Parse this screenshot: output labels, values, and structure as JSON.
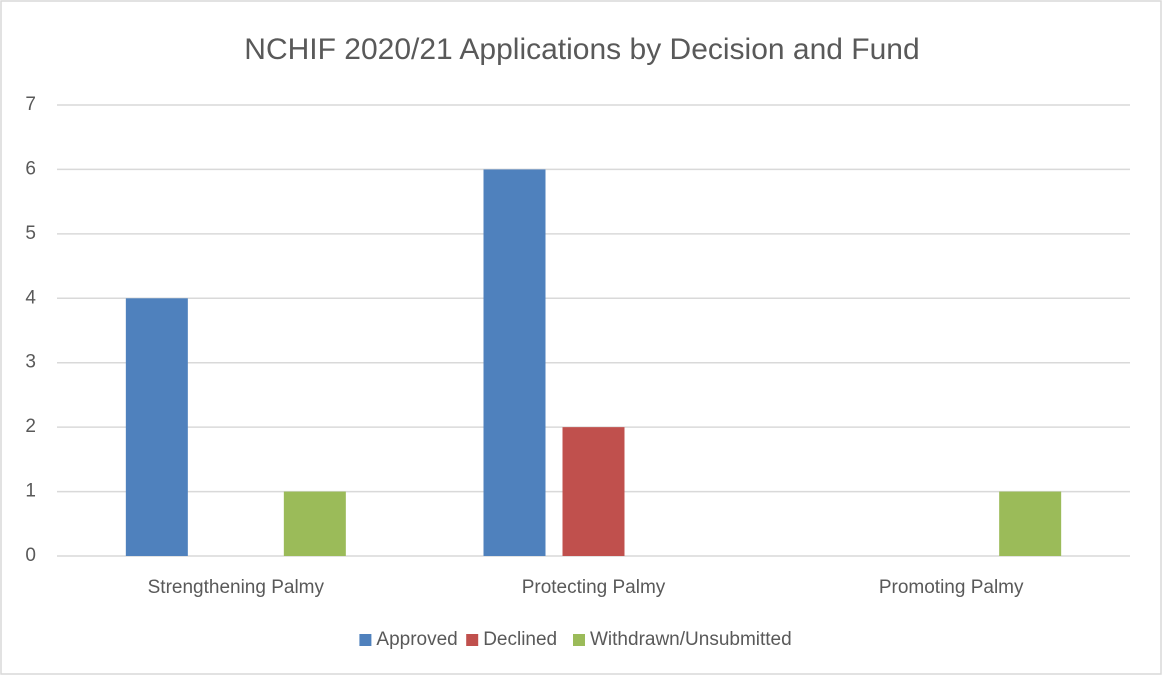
{
  "chart_data": {
    "type": "bar",
    "title": "NCHIF 2020/21 Applications by Decision and Fund",
    "categories": [
      "Strengthening Palmy",
      "Protecting Palmy",
      "Promoting Palmy"
    ],
    "series": [
      {
        "name": "Approved",
        "color": "#4f81bd",
        "values": [
          4,
          6,
          0
        ]
      },
      {
        "name": "Declined",
        "color": "#c0504d",
        "values": [
          0,
          2,
          0
        ]
      },
      {
        "name": "Withdrawn/Unsubmitted",
        "color": "#9bbb59",
        "values": [
          1,
          0,
          1
        ]
      }
    ],
    "ylim": [
      0,
      7
    ],
    "yticks": [
      0,
      1,
      2,
      3,
      4,
      5,
      6,
      7
    ],
    "grid": true,
    "legend": "bottom"
  }
}
